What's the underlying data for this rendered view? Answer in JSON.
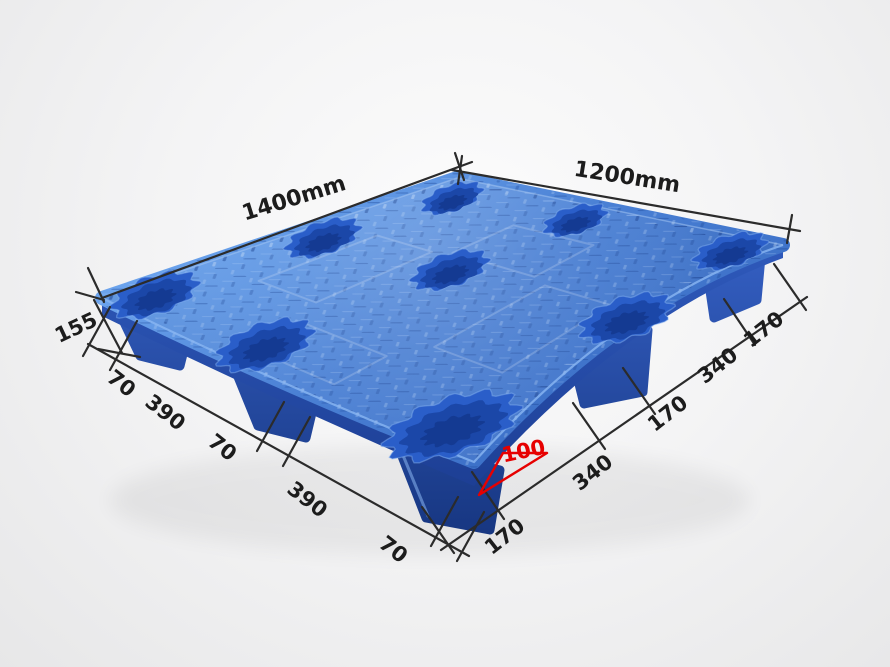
{
  "image_type": "product-dimension-diagram",
  "subject": "blue nestable plastic pallet with nine feet, isometric photo with dimension callouts",
  "annotations": {
    "length_label": "1400mm",
    "width_label": "1200mm",
    "height_label": "155",
    "foot_height_label": "100",
    "left_chain_labels": [
      "70",
      "390",
      "70",
      "390",
      "70"
    ],
    "right_chain_labels": [
      "170",
      "340",
      "170",
      "340",
      "170"
    ]
  },
  "colors": {
    "background_center": "#fcfcfc",
    "background_edge": "#e7e7e8",
    "pallet_light": "#6ba3ec",
    "pallet_main": "#4a80d4",
    "pallet_deep": "#3a6ec6",
    "pallet_side": "#2f5abc",
    "pallet_side_dark": "#1c3d92",
    "foot_top": "#3560c4",
    "foot_bottom": "#16357f",
    "recess": "#2a5ec9",
    "recess_dark": "#1b47a8",
    "recess_core": "#143a92",
    "edge_highlight": "#8ab6f2",
    "back_edge_highlight": "#a9c9f4",
    "dimension_line": "#2b2b2b",
    "label_text": "#1c1c1c",
    "annotation_red": "#e60000"
  }
}
